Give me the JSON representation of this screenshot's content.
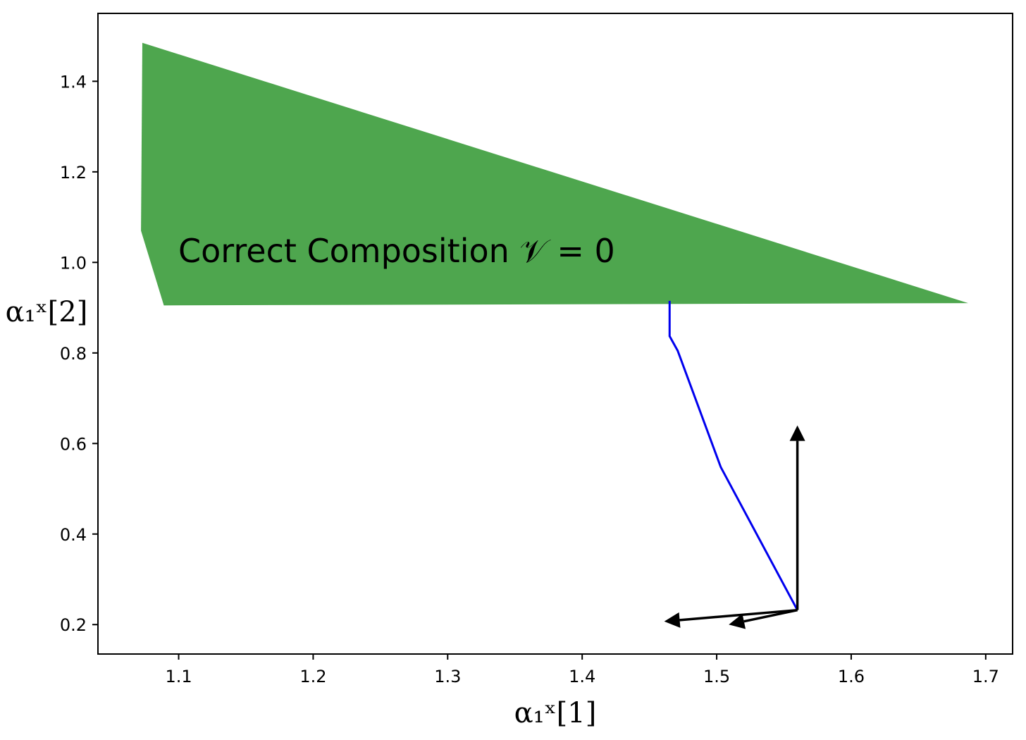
{
  "chart_data": {
    "type": "area",
    "xlabel": "α₁ˣ[1]",
    "ylabel": "α₁ˣ[2]",
    "xlim": [
      1.04,
      1.72
    ],
    "ylim": [
      0.135,
      1.55
    ],
    "x_ticks": [
      "1.1",
      "1.2",
      "1.3",
      "1.4",
      "1.5",
      "1.6",
      "1.7"
    ],
    "y_ticks": [
      "0.2",
      "0.4",
      "0.6",
      "0.8",
      "1.0",
      "1.2",
      "1.4"
    ],
    "grid": false,
    "region": {
      "label": "Correct Composition 𝒱 = 0",
      "color": "#4ea64e",
      "polygon": [
        [
          1.073,
          1.485
        ],
        [
          1.687,
          0.91
        ],
        [
          1.089,
          0.905
        ],
        [
          1.072,
          1.07
        ]
      ]
    },
    "series": [
      {
        "color": "#0000ee",
        "x": [
          1.465,
          1.465,
          1.471,
          1.503,
          1.56
        ],
        "y": [
          0.915,
          0.837,
          0.805,
          0.548,
          0.232
        ]
      }
    ],
    "arrows": [
      {
        "from": [
          1.56,
          0.232
        ],
        "to": [
          1.56,
          0.64
        ],
        "color": "#000000"
      },
      {
        "from": [
          1.56,
          0.232
        ],
        "to": [
          1.461,
          0.207
        ],
        "color": "#000000"
      },
      {
        "from": [
          1.56,
          0.232
        ],
        "to": [
          1.509,
          0.2
        ],
        "color": "#000000"
      }
    ]
  }
}
